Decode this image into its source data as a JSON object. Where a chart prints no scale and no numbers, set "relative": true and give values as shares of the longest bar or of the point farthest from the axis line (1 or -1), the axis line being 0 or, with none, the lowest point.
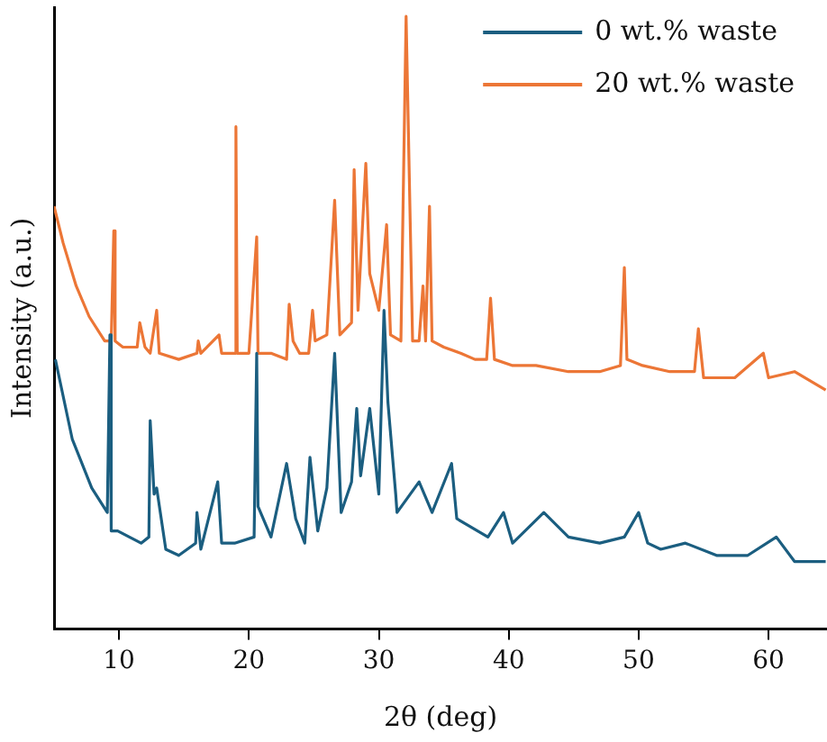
{
  "chart_data": {
    "type": "line",
    "relative": true,
    "xlabel": "2θ (deg)",
    "ylabel": "Intensity (a.u.)",
    "xlim": [
      5,
      64.5
    ],
    "xticks": [
      10,
      20,
      30,
      40,
      50,
      60
    ],
    "legend": "top right",
    "grid": false,
    "marker": "none",
    "line_style": "solid",
    "series": [
      {
        "name": "0 wt.% waste",
        "color": "#1b5e80",
        "x": [
          5.1,
          6.4,
          7.9,
          9.1,
          9.3,
          9.4,
          9.9,
          11.7,
          12.3,
          12.4,
          12.7,
          12.9,
          13.6,
          14.6,
          15.9,
          16.0,
          16.3,
          17.6,
          17.9,
          18.9,
          20.4,
          20.6,
          20.7,
          21.7,
          22.9,
          23.6,
          24.3,
          24.7,
          25.3,
          26.0,
          26.6,
          27.1,
          27.9,
          28.3,
          28.6,
          29.3,
          30.0,
          30.4,
          30.7,
          31.3,
          31.4,
          33.1,
          34.1,
          35.6,
          36.0,
          38.4,
          39.6,
          40.3,
          42.7,
          44.6,
          47.0,
          48.9,
          50.0,
          50.7,
          51.7,
          53.6,
          56.0,
          58.4,
          60.6,
          62.0,
          64.4
        ],
        "values": [
          0.44,
          0.31,
          0.23,
          0.19,
          0.48,
          0.16,
          0.16,
          0.14,
          0.15,
          0.34,
          0.22,
          0.23,
          0.13,
          0.12,
          0.14,
          0.19,
          0.13,
          0.24,
          0.14,
          0.14,
          0.15,
          0.45,
          0.2,
          0.15,
          0.27,
          0.18,
          0.14,
          0.28,
          0.16,
          0.23,
          0.45,
          0.19,
          0.24,
          0.36,
          0.25,
          0.36,
          0.22,
          0.52,
          0.37,
          0.22,
          0.19,
          0.24,
          0.19,
          0.27,
          0.18,
          0.15,
          0.19,
          0.14,
          0.19,
          0.15,
          0.14,
          0.15,
          0.19,
          0.14,
          0.13,
          0.14,
          0.12,
          0.12,
          0.15,
          0.11,
          0.11
        ]
      },
      {
        "name": "20 wt.% waste",
        "color": "#ec7636",
        "x": [
          5.0,
          5.7,
          6.7,
          7.7,
          8.9,
          9.4,
          9.6,
          9.7,
          10.3,
          11.4,
          11.6,
          12.0,
          12.4,
          12.9,
          13.1,
          14.6,
          16.0,
          16.1,
          16.3,
          17.7,
          17.9,
          18.9,
          19.0,
          19.1,
          20.0,
          20.6,
          20.7,
          21.7,
          22.9,
          23.1,
          23.4,
          23.9,
          24.6,
          24.9,
          25.1,
          26.0,
          26.6,
          27.0,
          27.9,
          28.1,
          28.4,
          29.0,
          29.3,
          30.0,
          30.6,
          30.9,
          31.7,
          32.1,
          32.6,
          33.1,
          33.4,
          33.6,
          33.9,
          34.1,
          35.0,
          36.3,
          37.4,
          38.3,
          38.6,
          38.9,
          40.3,
          42.1,
          44.6,
          47.0,
          48.6,
          48.9,
          49.1,
          50.3,
          52.4,
          54.3,
          54.6,
          55.0,
          57.4,
          59.6,
          60.0,
          62.0,
          64.4
        ],
        "values": [
          0.69,
          0.63,
          0.56,
          0.51,
          0.47,
          0.47,
          0.65,
          0.47,
          0.46,
          0.46,
          0.5,
          0.46,
          0.45,
          0.52,
          0.45,
          0.44,
          0.45,
          0.47,
          0.45,
          0.48,
          0.45,
          0.45,
          0.82,
          0.45,
          0.45,
          0.64,
          0.45,
          0.45,
          0.44,
          0.53,
          0.47,
          0.45,
          0.45,
          0.52,
          0.47,
          0.48,
          0.7,
          0.48,
          0.5,
          0.75,
          0.52,
          0.76,
          0.58,
          0.52,
          0.66,
          0.48,
          0.47,
          1.0,
          0.47,
          0.47,
          0.56,
          0.47,
          0.69,
          0.47,
          0.46,
          0.45,
          0.44,
          0.44,
          0.54,
          0.44,
          0.43,
          0.43,
          0.42,
          0.42,
          0.43,
          0.59,
          0.44,
          0.43,
          0.42,
          0.42,
          0.49,
          0.41,
          0.41,
          0.45,
          0.41,
          0.42,
          0.39
        ]
      }
    ]
  }
}
